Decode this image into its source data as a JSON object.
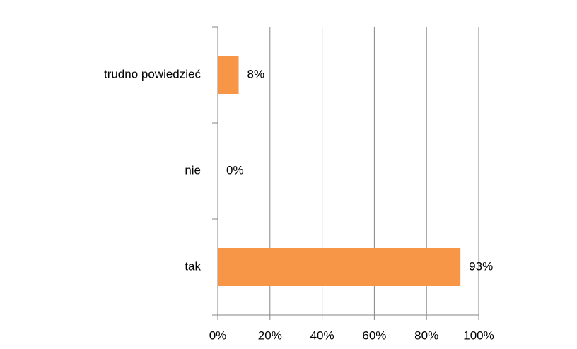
{
  "chart_data": {
    "type": "bar",
    "orientation": "horizontal",
    "categories": [
      "trudno powiedzieć",
      "nie",
      "tak"
    ],
    "values": [
      8,
      0,
      93
    ],
    "value_labels": [
      "8%",
      "0%",
      "93%"
    ],
    "color": "#f79646",
    "xlim": [
      0,
      100
    ],
    "xticks": [
      {
        "value": 0,
        "label": "0%"
      },
      {
        "value": 20,
        "label": "20%"
      },
      {
        "value": 40,
        "label": "40%"
      },
      {
        "value": 60,
        "label": "60%"
      },
      {
        "value": 80,
        "label": "80%"
      },
      {
        "value": 100,
        "label": "100%"
      }
    ],
    "grid": true
  }
}
